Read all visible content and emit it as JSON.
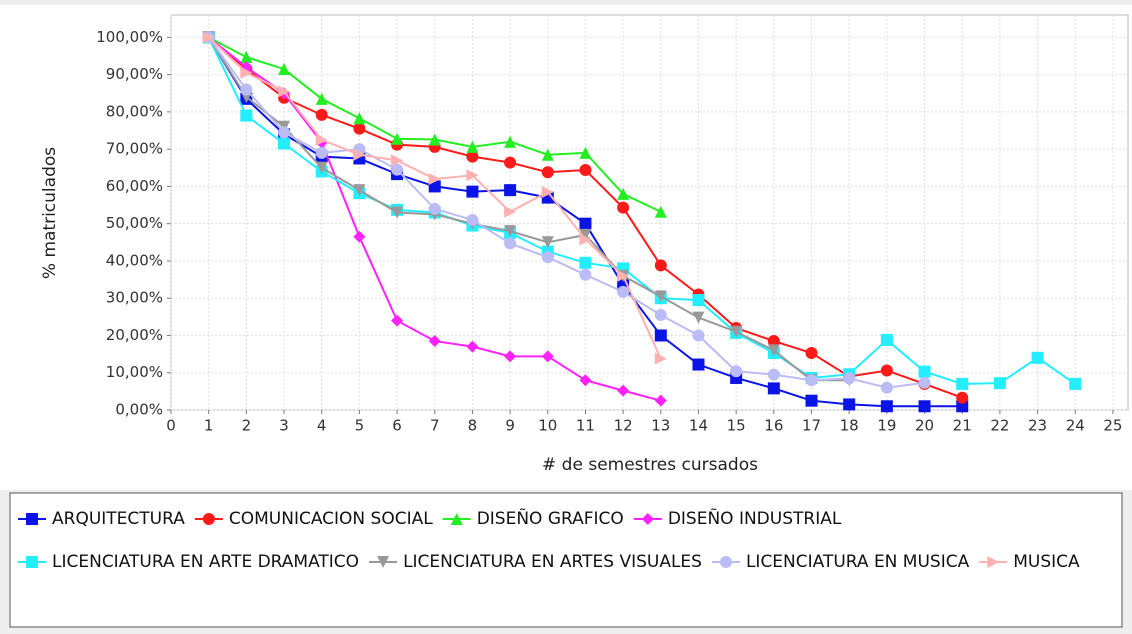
{
  "chart_data": {
    "type": "line",
    "x_label": "# de semestres cursados",
    "y_label": "% matriculados",
    "x": [
      1,
      2,
      3,
      4,
      5,
      6,
      7,
      8,
      9,
      10,
      11,
      12,
      13,
      14,
      15,
      16,
      17,
      18,
      19,
      20,
      21,
      22,
      23,
      24
    ],
    "xlim": [
      0,
      25.4
    ],
    "xticks": [
      0,
      1,
      2,
      3,
      4,
      5,
      6,
      7,
      8,
      9,
      10,
      11,
      12,
      13,
      14,
      15,
      16,
      17,
      18,
      19,
      20,
      21,
      22,
      23,
      24,
      25
    ],
    "ylim": [
      0,
      106
    ],
    "yticks": [
      {
        "value": 0,
        "label": "0,00%"
      },
      {
        "value": 10,
        "label": "10,00%"
      },
      {
        "value": 20,
        "label": "20,00%"
      },
      {
        "value": 30,
        "label": "30,00%"
      },
      {
        "value": 40,
        "label": "40,00%"
      },
      {
        "value": 50,
        "label": "50,00%"
      },
      {
        "value": 60,
        "label": "60,00%"
      },
      {
        "value": 70,
        "label": "70,00%"
      },
      {
        "value": 80,
        "label": "80,00%"
      },
      {
        "value": 90,
        "label": "90,00%"
      },
      {
        "value": 100,
        "label": "100,00%"
      }
    ],
    "grid": true,
    "series": [
      {
        "name": "ARQUITECTURA",
        "color": "#0a14e6",
        "values": [
          100,
          83.5,
          74,
          68,
          67.5,
          63.3,
          60,
          58.6,
          59,
          57,
          50,
          33.5,
          20,
          12.2,
          8.6,
          5.8,
          2.5,
          1.5,
          1,
          1,
          1,
          null,
          null,
          null
        ]
      },
      {
        "name": "COMUNICACION SOCIAL",
        "color": "#ff1a1a",
        "values": [
          100,
          91.5,
          83.8,
          79.2,
          75.5,
          71.2,
          70.6,
          68,
          66.4,
          63.8,
          64.4,
          54.3,
          38.8,
          31,
          22,
          18.5,
          15.3,
          9,
          10.6,
          7,
          3.3,
          null,
          null,
          null
        ]
      },
      {
        "name": "DISEÑO GRAFICO",
        "color": "#22ee22",
        "values": [
          100,
          94.7,
          91.5,
          83.5,
          78.3,
          72.8,
          72.6,
          70.6,
          72,
          68.5,
          69,
          58,
          53.2,
          null,
          null,
          null,
          null,
          null,
          null,
          null,
          null,
          null,
          null,
          null
        ]
      },
      {
        "name": "DISEÑO INDUSTRIAL",
        "color": "#ff22ff",
        "values": [
          100,
          92,
          85,
          71.8,
          46.5,
          24,
          18.5,
          17,
          14.4,
          14.4,
          8,
          5.2,
          2.5,
          null,
          null,
          null,
          null,
          null,
          null,
          null,
          null,
          null,
          null,
          null
        ]
      },
      {
        "name": "LICENCIATURA EN ARTE DRAMATICO",
        "color": "#22eeff",
        "values": [
          100,
          79,
          71.5,
          64,
          58.2,
          53.7,
          53,
          49.5,
          47.5,
          42.5,
          39.5,
          38,
          30,
          29.5,
          20.7,
          15.3,
          8.6,
          9.6,
          18.8,
          10.3,
          7,
          7.2,
          14,
          7
        ]
      },
      {
        "name": "LICENCIATURA EN ARTES VISUALES",
        "color": "#999999",
        "values": [
          100,
          84,
          76,
          65,
          59,
          53,
          52.5,
          50,
          48,
          45,
          47,
          36,
          30.5,
          24.8,
          21,
          16,
          8,
          8,
          null,
          null,
          null,
          null,
          null,
          null
        ]
      },
      {
        "name": "LICENCIATURA EN MUSICA",
        "color": "#bbbbf5",
        "values": [
          100,
          86,
          74.5,
          69,
          70,
          64.5,
          54,
          51,
          44.7,
          41,
          36.3,
          31.7,
          25.5,
          20,
          10.4,
          9.5,
          8,
          8.5,
          6,
          7.3,
          null,
          null,
          null,
          null
        ]
      },
      {
        "name": "MUSICA",
        "color": "#ffb0b0",
        "values": [
          100,
          90.5,
          85.5,
          72.5,
          68.5,
          67,
          62,
          63,
          53.2,
          58.5,
          45.8,
          36,
          13.8,
          null,
          null,
          null,
          null,
          null,
          null,
          null,
          null,
          null,
          null,
          null
        ]
      }
    ]
  }
}
